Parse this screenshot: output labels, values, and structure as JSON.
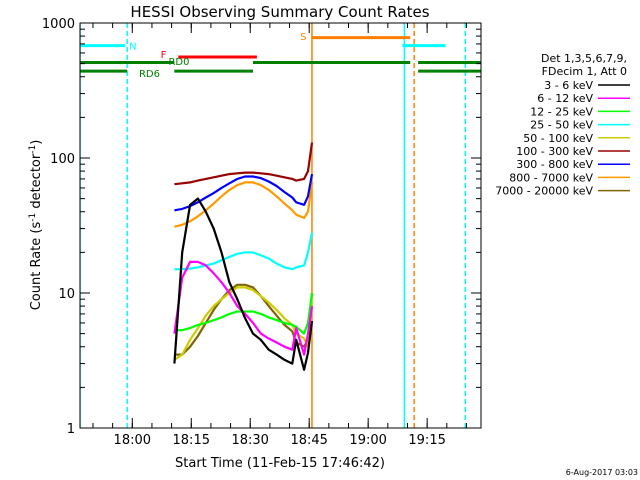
{
  "chart_data": {
    "type": "line",
    "title": "HESSI Observing Summary Count Rates",
    "xlabel": "Start Time (11-Feb-15 17:46:42)",
    "ylabel": "Count Rate (s⁻¹ detector⁻¹)",
    "ylabel_base": "Count Rate (s",
    "ylabel_mid": " detector",
    "ylabel_end": ")",
    "ylabel_sup": "-1",
    "yscale": "log",
    "ylim": [
      1,
      1000
    ],
    "xlim_minutes": [
      0,
      102
    ],
    "x_unit": "minutes after 17:46:42",
    "x_ticks": [
      {
        "label": "18:00",
        "minute": 13.3
      },
      {
        "label": "18:15",
        "minute": 28.3
      },
      {
        "label": "18:30",
        "minute": 43.3
      },
      {
        "label": "18:45",
        "minute": 58.3
      },
      {
        "label": "19:00",
        "minute": 73.3
      },
      {
        "label": "19:15",
        "minute": 88.3
      }
    ],
    "y_ticks": [
      {
        "label": "1",
        "value": 1
      },
      {
        "label": "10",
        "value": 10
      },
      {
        "label": "100",
        "value": 100
      },
      {
        "label": "1000",
        "value": 1000
      }
    ],
    "legend_header": [
      "Det 1,3,5,6,7,9,",
      "FDecim 1, Att 0"
    ],
    "legend_position": "right",
    "grid": false,
    "series": [
      {
        "name": "3 - 6 keV",
        "color": "#000000",
        "x": [
          0,
          14,
          16,
          18,
          20,
          22,
          24,
          26,
          28,
          30,
          32,
          34,
          36,
          38,
          40,
          42,
          44,
          46,
          48,
          50,
          52,
          54,
          55,
          57,
          58,
          59
        ],
        "y": [
          0,
          0,
          0,
          0,
          0,
          0,
          3,
          20,
          45,
          50,
          40,
          30,
          20,
          12,
          9,
          6.5,
          5,
          4.5,
          3.8,
          3.5,
          3.2,
          3.0,
          4.5,
          2.7,
          3.6,
          6.2
        ]
      },
      {
        "name": "6 - 12 keV",
        "color": "#ff00ff",
        "x": [
          0,
          14,
          16,
          18,
          20,
          22,
          24,
          26,
          28,
          30,
          32,
          34,
          36,
          38,
          40,
          42,
          44,
          46,
          48,
          50,
          52,
          54,
          55,
          57,
          58,
          59
        ],
        "y": [
          0,
          0,
          0,
          0,
          0,
          0,
          5,
          13,
          17,
          17,
          16,
          14,
          12,
          10,
          8,
          7,
          6,
          5,
          4.6,
          4.3,
          4,
          3.8,
          5.5,
          3.5,
          5,
          8
        ]
      },
      {
        "name": "12 - 25 keV",
        "color": "#00ff00",
        "x": [
          0,
          14,
          16,
          18,
          20,
          22,
          24,
          26,
          28,
          30,
          32,
          34,
          36,
          38,
          40,
          42,
          44,
          46,
          48,
          50,
          52,
          54,
          55,
          57,
          58,
          59
        ],
        "y": [
          0,
          0,
          0,
          0,
          0,
          0,
          5.3,
          5.3,
          5.5,
          5.8,
          6,
          6.3,
          6.6,
          7,
          7.3,
          7.3,
          7.3,
          7,
          6.6,
          6.3,
          6,
          5.8,
          5.6,
          5,
          6,
          10
        ]
      },
      {
        "name": "25 - 50 keV",
        "color": "#00ffff",
        "x": [
          0,
          14,
          16,
          18,
          20,
          22,
          24,
          26,
          28,
          30,
          32,
          34,
          36,
          38,
          40,
          42,
          44,
          46,
          48,
          50,
          52,
          54,
          55,
          57,
          58,
          59
        ],
        "y": [
          0,
          0,
          0,
          0,
          0,
          0,
          15,
          15,
          15.2,
          15.5,
          16,
          16.5,
          17.5,
          18.5,
          19.5,
          20,
          20,
          19,
          18,
          16.5,
          15.5,
          15,
          15.5,
          16,
          20,
          28
        ]
      },
      {
        "name": "50 - 100 keV",
        "color": "#cccc00",
        "x": [
          0,
          14,
          16,
          18,
          20,
          22,
          24,
          26,
          28,
          30,
          32,
          34,
          36,
          38,
          40,
          42,
          44,
          46,
          48,
          50,
          52,
          54,
          55,
          57,
          58,
          59
        ],
        "y": [
          0,
          0,
          0,
          0,
          0,
          0,
          3.2,
          3.5,
          4.5,
          5.5,
          6.8,
          8,
          9,
          10,
          11,
          11,
          10.5,
          9.5,
          8.5,
          7.5,
          6.5,
          5.8,
          5,
          4.6,
          4,
          10
        ]
      },
      {
        "name": "100 - 300 keV",
        "color": "#990000",
        "x": [
          0,
          14,
          16,
          18,
          20,
          22,
          24,
          26,
          28,
          30,
          32,
          34,
          36,
          38,
          40,
          42,
          44,
          46,
          48,
          50,
          52,
          54,
          55,
          57,
          58,
          59
        ],
        "y": [
          0,
          0,
          0,
          0,
          0,
          0,
          64,
          65,
          66,
          68,
          70,
          72,
          74,
          76,
          77,
          78,
          78,
          77,
          76,
          74,
          72,
          70,
          68,
          70,
          80,
          130
        ]
      },
      {
        "name": "300 - 800 keV",
        "color": "#0000ff",
        "x": [
          0,
          14,
          16,
          18,
          20,
          22,
          24,
          26,
          28,
          30,
          32,
          34,
          36,
          38,
          40,
          42,
          44,
          46,
          48,
          50,
          52,
          54,
          55,
          57,
          58,
          59
        ],
        "y": [
          0,
          0,
          0,
          0,
          0,
          0,
          41,
          42,
          44,
          47,
          51,
          55,
          60,
          65,
          70,
          73,
          73,
          71,
          67,
          62,
          56,
          51,
          47,
          45,
          52,
          76
        ]
      },
      {
        "name": "800 - 7000 keV",
        "color": "#ff9900",
        "x": [
          0,
          14,
          16,
          18,
          20,
          22,
          24,
          26,
          28,
          30,
          32,
          34,
          36,
          38,
          40,
          42,
          44,
          46,
          48,
          50,
          52,
          54,
          55,
          57,
          58,
          59
        ],
        "y": [
          0,
          0,
          0,
          0,
          0,
          0,
          31,
          32,
          34,
          37,
          41,
          46,
          52,
          58,
          63,
          66,
          66,
          63,
          58,
          52,
          46,
          41,
          38,
          36,
          40,
          66
        ]
      },
      {
        "name": "7000 - 20000 keV",
        "color": "#806600",
        "x": [
          0,
          14,
          16,
          18,
          20,
          22,
          24,
          26,
          28,
          30,
          32,
          34,
          36,
          38,
          40,
          42,
          44,
          46,
          48,
          50,
          52,
          54,
          55,
          57,
          58,
          59
        ],
        "y": [
          0,
          0,
          0,
          0,
          0,
          0,
          3.5,
          3.5,
          4,
          4.8,
          6,
          7.5,
          9,
          10.5,
          11.5,
          11.5,
          11,
          9.5,
          8,
          6.8,
          5.8,
          5.2,
          4.3,
          4,
          4.5,
          10
        ]
      }
    ],
    "annotations": [
      {
        "text": "N",
        "color": "#00ffff"
      },
      {
        "text": "F",
        "color": "#ff0000"
      },
      {
        "text": "RD0",
        "color": "#008000"
      },
      {
        "text": "RD6",
        "color": "#008000"
      },
      {
        "text": "S",
        "color": "#ff8000"
      }
    ],
    "flag_segments": [
      {
        "flag": "N",
        "color": "#00ffff",
        "y": 680,
        "ranges": [
          [
            0,
            11.5
          ],
          [
            82,
            93
          ]
        ]
      },
      {
        "flag": "F",
        "color": "#ff0000",
        "y": 560,
        "ranges": [
          [
            25,
            45
          ]
        ]
      },
      {
        "flag": "S",
        "color": "#ff8000",
        "y": 780,
        "ranges": [
          [
            59,
            84
          ]
        ]
      },
      {
        "flag": "RD0",
        "color": "#008000",
        "y": 510,
        "ranges": [
          [
            0,
            24
          ],
          [
            44,
            84
          ],
          [
            86,
            102
          ]
        ]
      },
      {
        "flag": "RD6",
        "color": "#008000",
        "y": 440,
        "ranges": [
          [
            0,
            12
          ],
          [
            24,
            44
          ],
          [
            86,
            102
          ]
        ]
      }
    ],
    "vertical_markers": [
      {
        "minute": 0,
        "color": "#00ffff",
        "style": "solid"
      },
      {
        "minute": 12,
        "color": "#00ffff",
        "style": "dashed"
      },
      {
        "minute": 59,
        "color": "#ff8000",
        "style": "solid"
      },
      {
        "minute": 82.5,
        "color": "#00ffff",
        "style": "solid"
      },
      {
        "minute": 85,
        "color": "#ff8000",
        "style": "dashed"
      },
      {
        "minute": 98,
        "color": "#00ffff",
        "style": "dashed"
      }
    ],
    "footer_date": "6-Aug-2017 03:03"
  }
}
